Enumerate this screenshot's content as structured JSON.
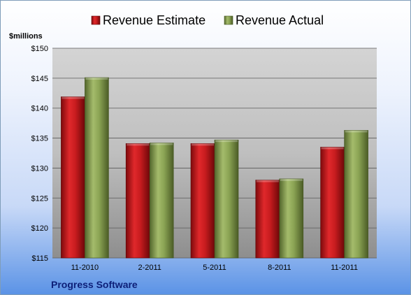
{
  "footer": {
    "company": "Progress Software"
  },
  "chart_data": {
    "type": "bar",
    "unit_label": "$millions",
    "categories": [
      "11-2010",
      "2-2011",
      "5-2011",
      "8-2011",
      "11-2011"
    ],
    "series": [
      {
        "name": "Revenue Estimate",
        "color": "#c0171a",
        "values": [
          141.9,
          134.1,
          134.1,
          128.0,
          133.5
        ]
      },
      {
        "name": "Revenue Actual",
        "color": "#8aa152",
        "values": [
          145.1,
          134.2,
          134.7,
          128.2,
          136.3
        ]
      }
    ],
    "ylim": [
      115,
      150
    ],
    "yticks": [
      115,
      120,
      125,
      130,
      135,
      140,
      145,
      150
    ],
    "ytick_format": "${v}",
    "grid": true,
    "legend_position": "top"
  }
}
